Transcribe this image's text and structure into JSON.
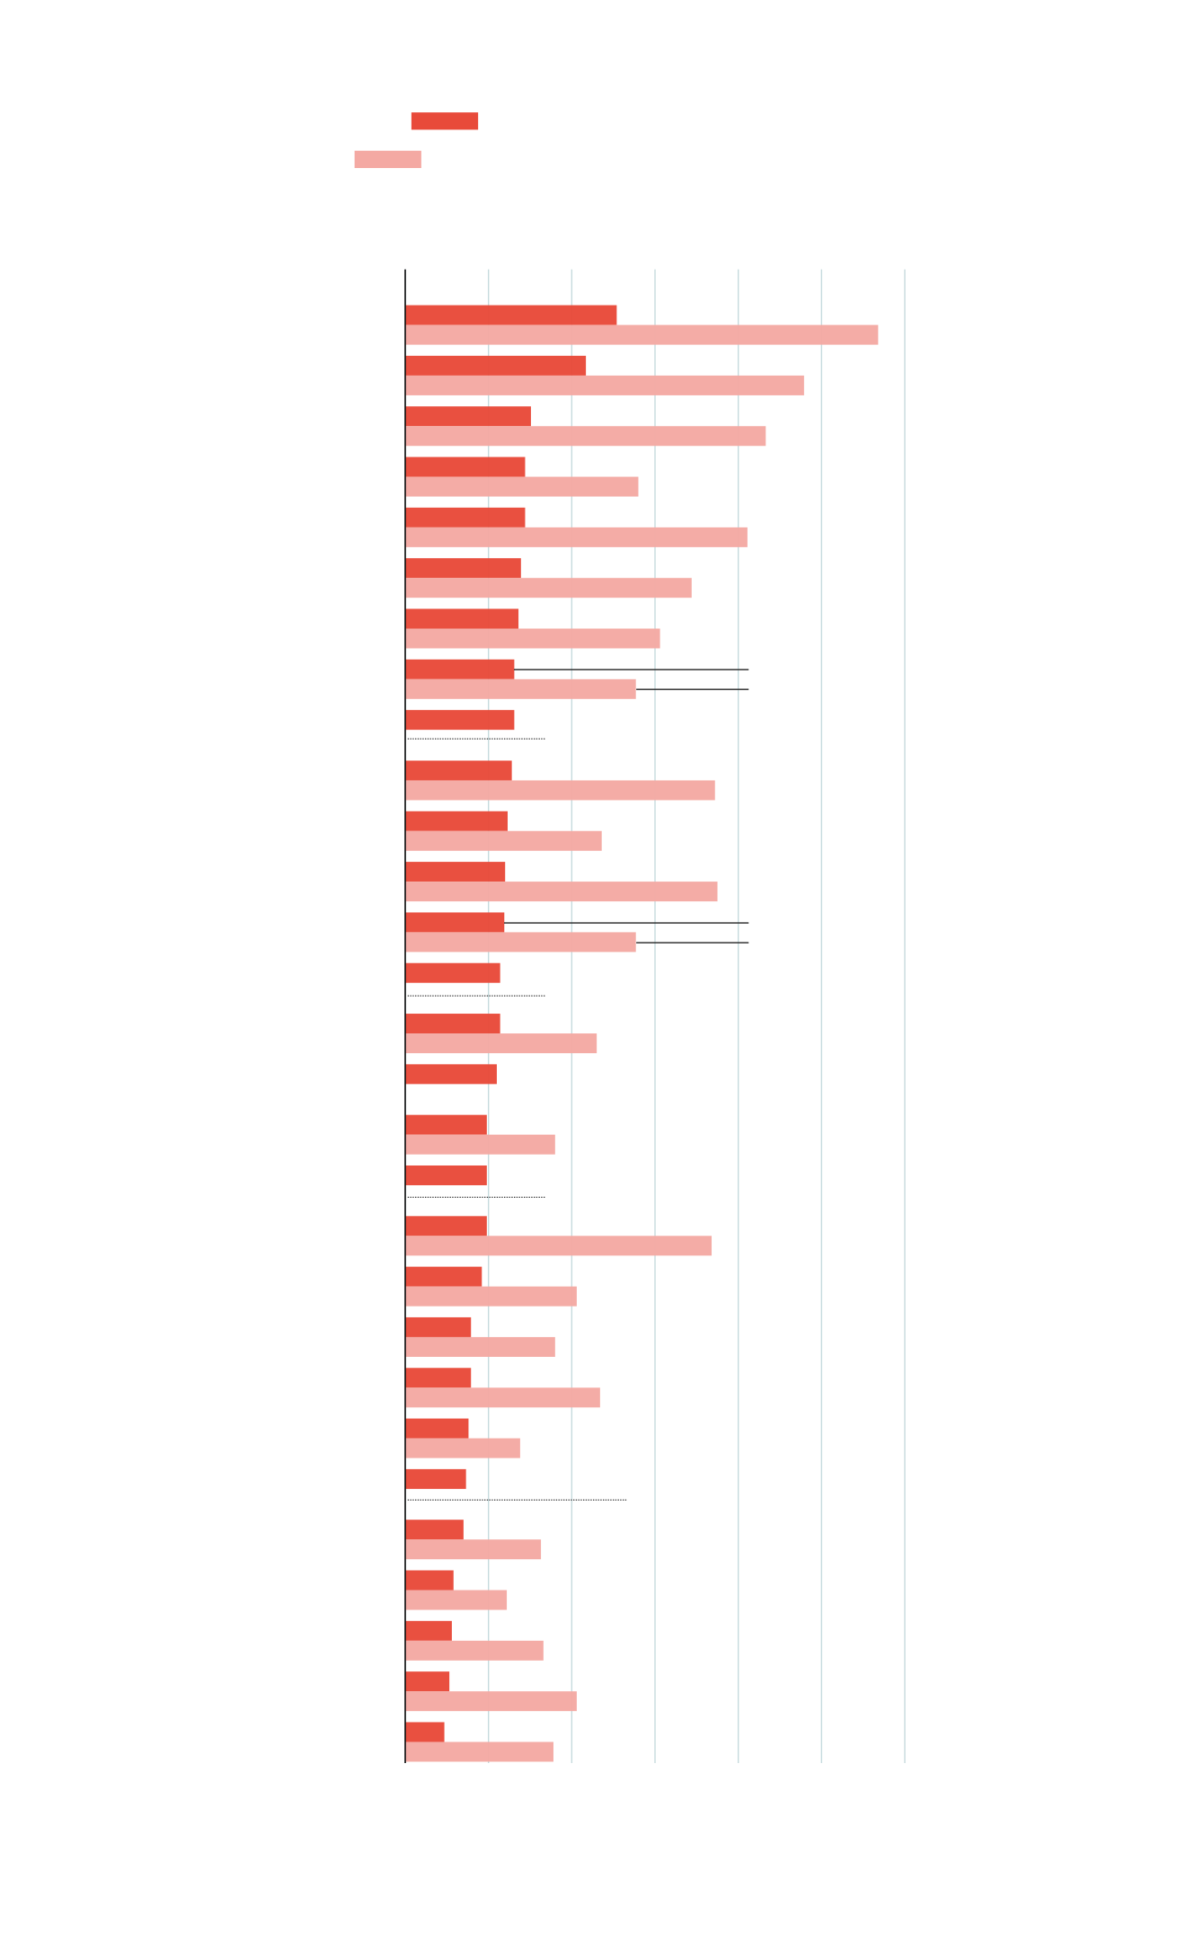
{
  "chart_data": {
    "type": "grouped_hbar",
    "categories": [
      null,
      null,
      null,
      null,
      null,
      null,
      null,
      null,
      null,
      null,
      null,
      null,
      null,
      null,
      null,
      null,
      null,
      null,
      null,
      null,
      null,
      null,
      null,
      null,
      null,
      null,
      null,
      null,
      null
    ],
    "series": [
      {
        "color": "#e84a3a",
        "values": [
          2.54,
          2.17,
          1.51,
          1.44,
          1.44,
          1.39,
          1.36,
          1.31,
          1.31,
          1.28,
          1.23,
          1.2,
          1.19,
          1.14,
          1.14,
          1.1,
          0.98,
          0.98,
          0.98,
          0.92,
          0.79,
          0.79,
          0.76,
          0.73,
          0.7,
          0.58,
          0.56,
          0.53,
          0.47
        ]
      },
      {
        "color": "#f4a9a3",
        "values": [
          5.68,
          4.79,
          4.33,
          2.8,
          4.11,
          3.44,
          3.06,
          2.77,
          null,
          3.72,
          2.36,
          3.75,
          2.77,
          null,
          2.3,
          null,
          1.8,
          null,
          3.68,
          2.06,
          1.8,
          2.34,
          1.38,
          null,
          1.63,
          1.22,
          1.66,
          2.06,
          1.78
        ]
      }
    ],
    "xlim": [
      0,
      6
    ],
    "xticks": [
      0,
      1,
      2,
      3,
      4,
      5,
      6
    ],
    "grid": true
  }
}
